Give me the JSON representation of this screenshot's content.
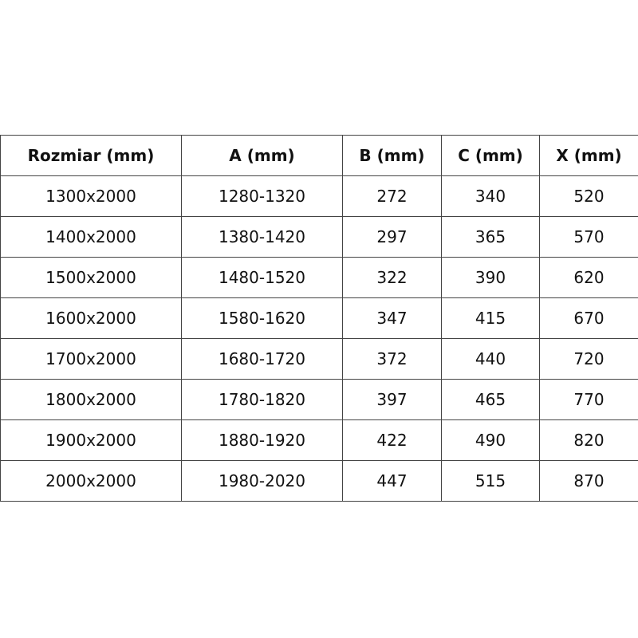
{
  "table": {
    "headers": [
      "Rozmiar (mm)",
      "A (mm)",
      "B (mm)",
      "C (mm)",
      "X (mm)"
    ],
    "rows": [
      [
        "1300x2000",
        "1280-1320",
        "272",
        "340",
        "520"
      ],
      [
        "1400x2000",
        "1380-1420",
        "297",
        "365",
        "570"
      ],
      [
        "1500x2000",
        "1480-1520",
        "322",
        "390",
        "620"
      ],
      [
        "1600x2000",
        "1580-1620",
        "347",
        "415",
        "670"
      ],
      [
        "1700x2000",
        "1680-1720",
        "372",
        "440",
        "720"
      ],
      [
        "1800x2000",
        "1780-1820",
        "397",
        "465",
        "770"
      ],
      [
        "1900x2000",
        "1880-1920",
        "422",
        "490",
        "820"
      ],
      [
        "2000x2000",
        "1980-2020",
        "447",
        "515",
        "870"
      ]
    ]
  }
}
